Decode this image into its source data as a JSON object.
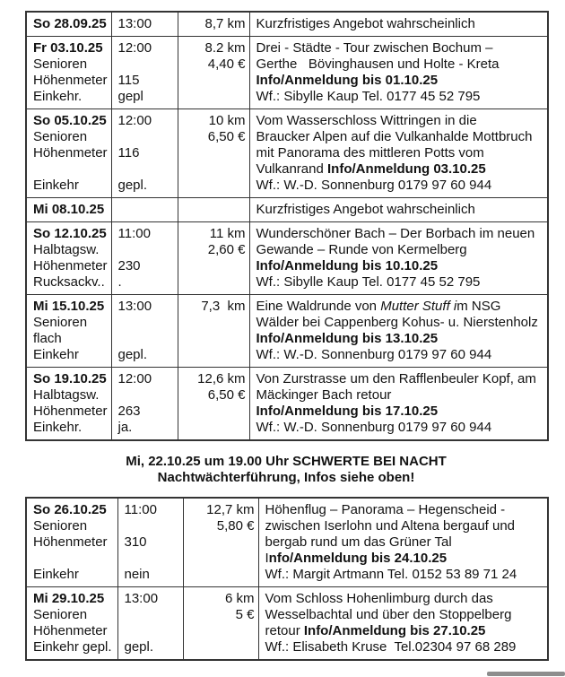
{
  "colors": {
    "border": "#343434",
    "text": "#121212",
    "background": "#ffffff",
    "scrollbar": "#8d8d8d"
  },
  "note": {
    "line1": "Mi, 22.10.25 um 19.00 Uhr SCHWERTE BEI NACHT",
    "line2": "Nachtwächterführung, Infos siehe oben!"
  },
  "tables": [
    {
      "id": "hike-schedule-table-1",
      "rows": [
        {
          "cells": [
            [
              [
                {
                  "t": "So 28.09.25",
                  "b": true
                }
              ]
            ],
            [
              [
                {
                  "t": "13:00"
                }
              ]
            ],
            [
              [
                {
                  "t": "8,7 km"
                }
              ]
            ],
            [
              [
                {
                  "t": "Kurzfristiges Angebot wahrscheinlich"
                }
              ]
            ]
          ]
        },
        {
          "cells": [
            [
              [
                {
                  "t": "Fr 03.10.25",
                  "b": true
                }
              ],
              [
                {
                  "t": "Senioren"
                }
              ],
              [
                {
                  "t": "Höhenmeter"
                }
              ],
              [
                {
                  "t": "Einkehr."
                }
              ]
            ],
            [
              [
                {
                  "t": "12:00"
                }
              ],
              [],
              [
                {
                  "t": "115"
                }
              ],
              [
                {
                  "t": "gepl"
                }
              ]
            ],
            [
              [
                {
                  "t": "8.2 km"
                }
              ],
              [
                {
                  "t": "4,40 €"
                }
              ]
            ],
            [
              [
                {
                  "t": "Drei - Städte - Tour zwischen Bochum –"
                }
              ],
              [
                {
                  "t": "Gerthe   Bövinghausen und Holte - Kreta"
                }
              ],
              [
                {
                  "t": "Info/Anmeldung bis 01.10.25",
                  "b": true
                }
              ],
              [
                {
                  "t": "Wf.: Sibylle Kaup Tel. 0177 45 52 795"
                }
              ]
            ]
          ]
        },
        {
          "cells": [
            [
              [
                {
                  "t": "So 05.10.25",
                  "b": true
                }
              ],
              [
                {
                  "t": "Senioren"
                }
              ],
              [
                {
                  "t": "Höhenmeter"
                }
              ],
              [],
              [
                {
                  "t": "Einkehr"
                }
              ]
            ],
            [
              [
                {
                  "t": "12:00"
                }
              ],
              [],
              [
                {
                  "t": "116"
                }
              ],
              [],
              [
                {
                  "t": "gepl."
                }
              ]
            ],
            [
              [
                {
                  "t": "10 km"
                }
              ],
              [
                {
                  "t": "6,50 €"
                }
              ]
            ],
            [
              [
                {
                  "t": "Vom Wasserschloss Wittringen in die"
                }
              ],
              [
                {
                  "t": "Braucker Alpen auf die Vulkanhalde Mottbruch"
                }
              ],
              [
                {
                  "t": "mit Panorama des mittleren Potts vom"
                }
              ],
              [
                {
                  "t": "Vulkanrand "
                },
                {
                  "t": "Info/Anmeldung 03.10.25",
                  "b": true
                }
              ],
              [
                {
                  "t": "Wf.: W.-D. Sonnenburg 0179 97 60 944"
                }
              ]
            ]
          ]
        },
        {
          "cells": [
            [
              [
                {
                  "t": "Mi 08.10.25",
                  "b": true
                }
              ]
            ],
            [],
            [],
            [
              [
                {
                  "t": "Kurzfristiges Angebot wahrscheinlich"
                }
              ]
            ]
          ]
        },
        {
          "cells": [
            [
              [
                {
                  "t": "So 12.10.25",
                  "b": true
                }
              ],
              [
                {
                  "t": "Halbtagsw."
                }
              ],
              [
                {
                  "t": "Höhenmeter"
                }
              ],
              [
                {
                  "t": "Rucksackv.."
                }
              ]
            ],
            [
              [
                {
                  "t": "11:00"
                }
              ],
              [],
              [
                {
                  "t": "230"
                }
              ],
              [
                {
                  "t": "."
                }
              ]
            ],
            [
              [
                {
                  "t": "11 km"
                }
              ],
              [
                {
                  "t": "2,60 €"
                }
              ]
            ],
            [
              [
                {
                  "t": "Wunderschöner Bach – Der Borbach im neuen"
                }
              ],
              [
                {
                  "t": "Gewande – Runde von Kermelberg"
                }
              ],
              [
                {
                  "t": "Info/Anmeldung bis 10.10.25",
                  "b": true
                }
              ],
              [
                {
                  "t": "Wf.: Sibylle Kaup Tel. 0177 45 52 795"
                }
              ]
            ]
          ]
        },
        {
          "cells": [
            [
              [
                {
                  "t": "Mi 15.10.25",
                  "b": true
                }
              ],
              [
                {
                  "t": "Senioren"
                }
              ],
              [
                {
                  "t": "flach"
                }
              ],
              [
                {
                  "t": "Einkehr"
                }
              ]
            ],
            [
              [
                {
                  "t": "13:00"
                }
              ],
              [],
              [],
              [
                {
                  "t": "gepl."
                }
              ]
            ],
            [
              [
                {
                  "t": "7,3  km"
                }
              ]
            ],
            [
              [
                {
                  "t": "Eine Waldrunde von "
                },
                {
                  "t": "Mutter Stuff i",
                  "i": true
                },
                {
                  "t": "m NSG"
                }
              ],
              [
                {
                  "t": "Wälder bei Cappenberg Kohus- u. Nierstenholz"
                }
              ],
              [
                {
                  "t": "Info/Anmeldung bis 13.10.25",
                  "b": true
                }
              ],
              [
                {
                  "t": "Wf.: W.-D. Sonnenburg 0179 97 60 944"
                }
              ]
            ]
          ]
        },
        {
          "cells": [
            [
              [
                {
                  "t": "So 19.10.25",
                  "b": true
                }
              ],
              [
                {
                  "t": "Halbtagsw."
                }
              ],
              [
                {
                  "t": "Höhenmeter"
                }
              ],
              [
                {
                  "t": "Einkehr."
                }
              ]
            ],
            [
              [
                {
                  "t": "12:00"
                }
              ],
              [],
              [
                {
                  "t": "263"
                }
              ],
              [
                {
                  "t": "ja."
                }
              ]
            ],
            [
              [
                {
                  "t": "12,6 km"
                }
              ],
              [
                {
                  "t": "6,50 €"
                }
              ]
            ],
            [
              [
                {
                  "t": "Von Zurstrasse um den Rafflenbeuler Kopf, am"
                }
              ],
              [
                {
                  "t": "Mäckinger Bach retour"
                }
              ],
              [
                {
                  "t": "Info/Anmeldung bis 17.10.25",
                  "b": true
                }
              ],
              [
                {
                  "t": "Wf.: W.-D. Sonnenburg 0179 97 60 944"
                }
              ]
            ]
          ]
        }
      ]
    },
    {
      "id": "hike-schedule-table-2",
      "rows": [
        {
          "cells": [
            [
              [
                {
                  "t": "So 26.10.25",
                  "b": true
                }
              ],
              [
                {
                  "t": "Senioren"
                }
              ],
              [
                {
                  "t": "Höhenmeter"
                }
              ],
              [],
              [
                {
                  "t": "Einkehr"
                }
              ]
            ],
            [
              [
                {
                  "t": "11:00"
                }
              ],
              [],
              [
                {
                  "t": "310"
                }
              ],
              [],
              [
                {
                  "t": "nein"
                }
              ]
            ],
            [
              [
                {
                  "t": "12,7 km"
                }
              ],
              [
                {
                  "t": "5,80 €"
                }
              ]
            ],
            [
              [
                {
                  "t": "Höhenflug – Panorama – Hegenscheid -"
                }
              ],
              [
                {
                  "t": "zwischen Iserlohn und Altena bergauf und"
                }
              ],
              [
                {
                  "t": "bergab rund um das Grüner Tal"
                }
              ],
              [
                {
                  "t": "I"
                },
                {
                  "t": "nfo/Anmeldung bis 24.10.25",
                  "b": true
                }
              ],
              [
                {
                  "t": "Wf.: Margit Artmann Tel. 0152 53 89 71 24"
                }
              ]
            ]
          ]
        },
        {
          "cells": [
            [
              [
                {
                  "t": "Mi 29.10.25",
                  "b": true
                }
              ],
              [
                {
                  "t": "Senioren"
                }
              ],
              [
                {
                  "t": "Höhenmeter"
                }
              ],
              [
                {
                  "t": "Einkehr gepl."
                }
              ]
            ],
            [
              [
                {
                  "t": "13:00"
                }
              ],
              [],
              [],
              [
                {
                  "t": "gepl."
                }
              ]
            ],
            [
              [
                {
                  "t": "6 km"
                }
              ],
              [
                {
                  "t": "5 €"
                }
              ]
            ],
            [
              [
                {
                  "t": "Vom Schloss Hohenlimburg durch das"
                }
              ],
              [
                {
                  "t": "Wesselbachtal und über den Stoppelberg"
                }
              ],
              [
                {
                  "t": "retour "
                },
                {
                  "t": "Info/Anmeldung bis 27.10.25",
                  "b": true
                }
              ],
              [
                {
                  "t": "Wf.: Elisabeth Kruse  Tel.02304 97 68 289"
                }
              ]
            ]
          ]
        }
      ]
    }
  ]
}
